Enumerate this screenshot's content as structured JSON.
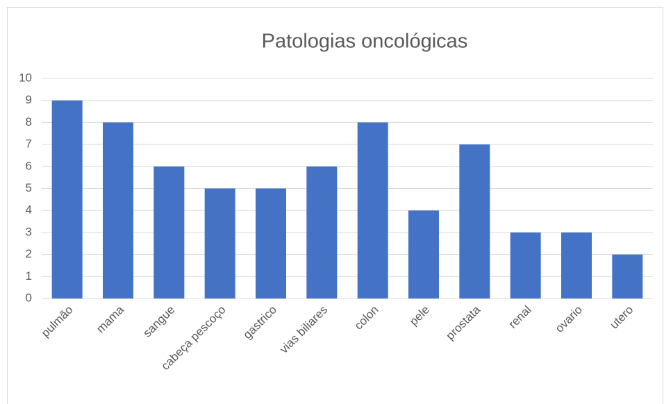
{
  "chart_data": {
    "type": "bar",
    "title": "Patologias oncológicas",
    "categories": [
      "pulmão",
      "mama",
      "sangue",
      "cabeça pescoço",
      "gastrico",
      "vias biliares",
      "colon",
      "pele",
      "prostata",
      "renal",
      "ovario",
      "utero"
    ],
    "values": [
      9,
      8,
      6,
      5,
      5,
      6,
      8,
      4,
      7,
      3,
      3,
      2
    ],
    "color": "#4472c4",
    "ylim": [
      0,
      10
    ],
    "yticks": [
      0,
      1,
      2,
      3,
      4,
      5,
      6,
      7,
      8,
      9,
      10
    ],
    "grid": true
  }
}
